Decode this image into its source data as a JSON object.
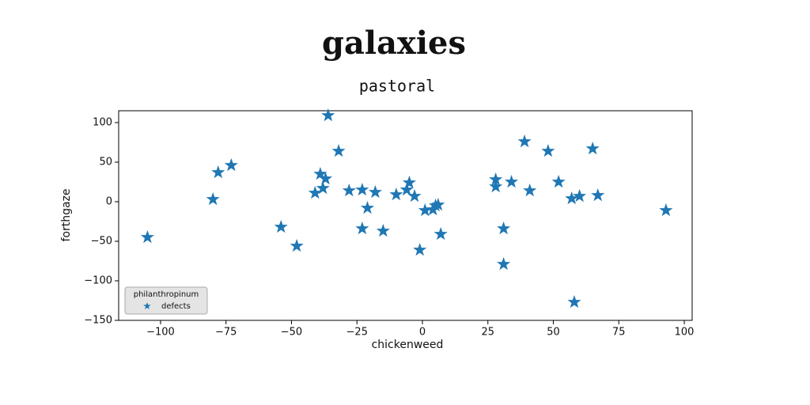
{
  "chart_data": {
    "type": "scatter",
    "title": "galaxies",
    "subtitle": "pastoral",
    "xlabel": "chickenweed",
    "ylabel": "forthgaze",
    "legend_title": "philanthropinum",
    "legend_loc": "lower left",
    "xlim": [
      -116,
      103
    ],
    "ylim": [
      -150,
      115
    ],
    "xticks": [
      {
        "value": -100,
        "label": "−100"
      },
      {
        "value": -75,
        "label": "−75"
      },
      {
        "value": -50,
        "label": "−50"
      },
      {
        "value": -25,
        "label": "−25"
      },
      0,
      25,
      50,
      75,
      100
    ],
    "yticks": [
      {
        "value": -150,
        "label": "−150"
      },
      {
        "value": -100,
        "label": "−100"
      },
      {
        "value": -50,
        "label": "−50"
      },
      0,
      50,
      100
    ],
    "series": [
      {
        "name": "defects",
        "color": "#1f77b4",
        "x": [
          -105,
          -80,
          -78,
          -73,
          -54,
          -48,
          -41,
          -39,
          -38,
          -37,
          -36,
          -32,
          -28,
          -23,
          -23,
          -21,
          -18,
          -15,
          -10,
          -6,
          -5,
          -3,
          -1,
          1,
          4,
          5,
          6,
          7,
          28,
          28,
          31,
          31,
          34,
          39,
          41,
          48,
          52,
          57,
          58,
          60,
          65,
          67,
          93
        ],
        "values": [
          -45,
          3,
          37,
          46,
          -32,
          -56,
          11,
          35,
          17,
          29,
          109,
          64,
          14,
          -34,
          15,
          -8,
          12,
          -37,
          9,
          15,
          24,
          7,
          -61,
          -11,
          -10,
          -5,
          -4,
          -41,
          19,
          28,
          -34,
          -79,
          25,
          76,
          14,
          64,
          25,
          4,
          -127,
          7,
          67,
          8,
          -11
        ]
      }
    ]
  }
}
